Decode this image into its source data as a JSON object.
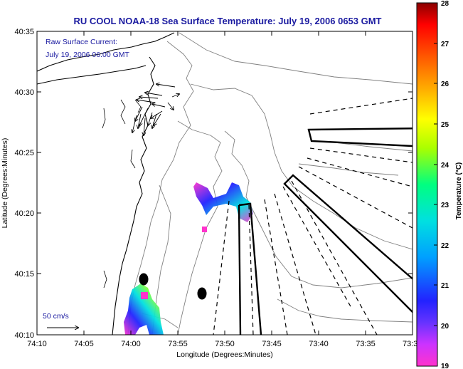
{
  "title": "RU COOL  NOAA-18  Sea Surface Temperature:  July 19, 2006 0653 GMT",
  "annotation": {
    "line1": "Raw Surface Current:",
    "line2": "July 19, 2006 06:00 GMT"
  },
  "scale_label": "50 cm/s",
  "x_axis": {
    "label": "Longitude (Degrees:Minutes)",
    "ticks": [
      "74:10",
      "74:05",
      "74:00",
      "73:55",
      "73:50",
      "73:45",
      "73:40",
      "73:35",
      "73:3"
    ]
  },
  "y_axis": {
    "label": "Latitude (Degrees:Minutes)",
    "ticks": [
      "40:35",
      "40:30",
      "40:25",
      "40:20",
      "40:15",
      "40:10"
    ]
  },
  "colorbar": {
    "label": "Temperature (°C)",
    "ticks": [
      "28",
      "27",
      "26",
      "25",
      "24",
      "23",
      "22",
      "21",
      "20",
      "19"
    ],
    "range": [
      19,
      28
    ],
    "colors": [
      "#ff33cc",
      "#9933ff",
      "#2222ff",
      "#00a0ff",
      "#00e0e0",
      "#00ff80",
      "#aaff00",
      "#ffff00",
      "#ffb000",
      "#ff6000",
      "#ff0000",
      "#8a0000"
    ]
  }
}
